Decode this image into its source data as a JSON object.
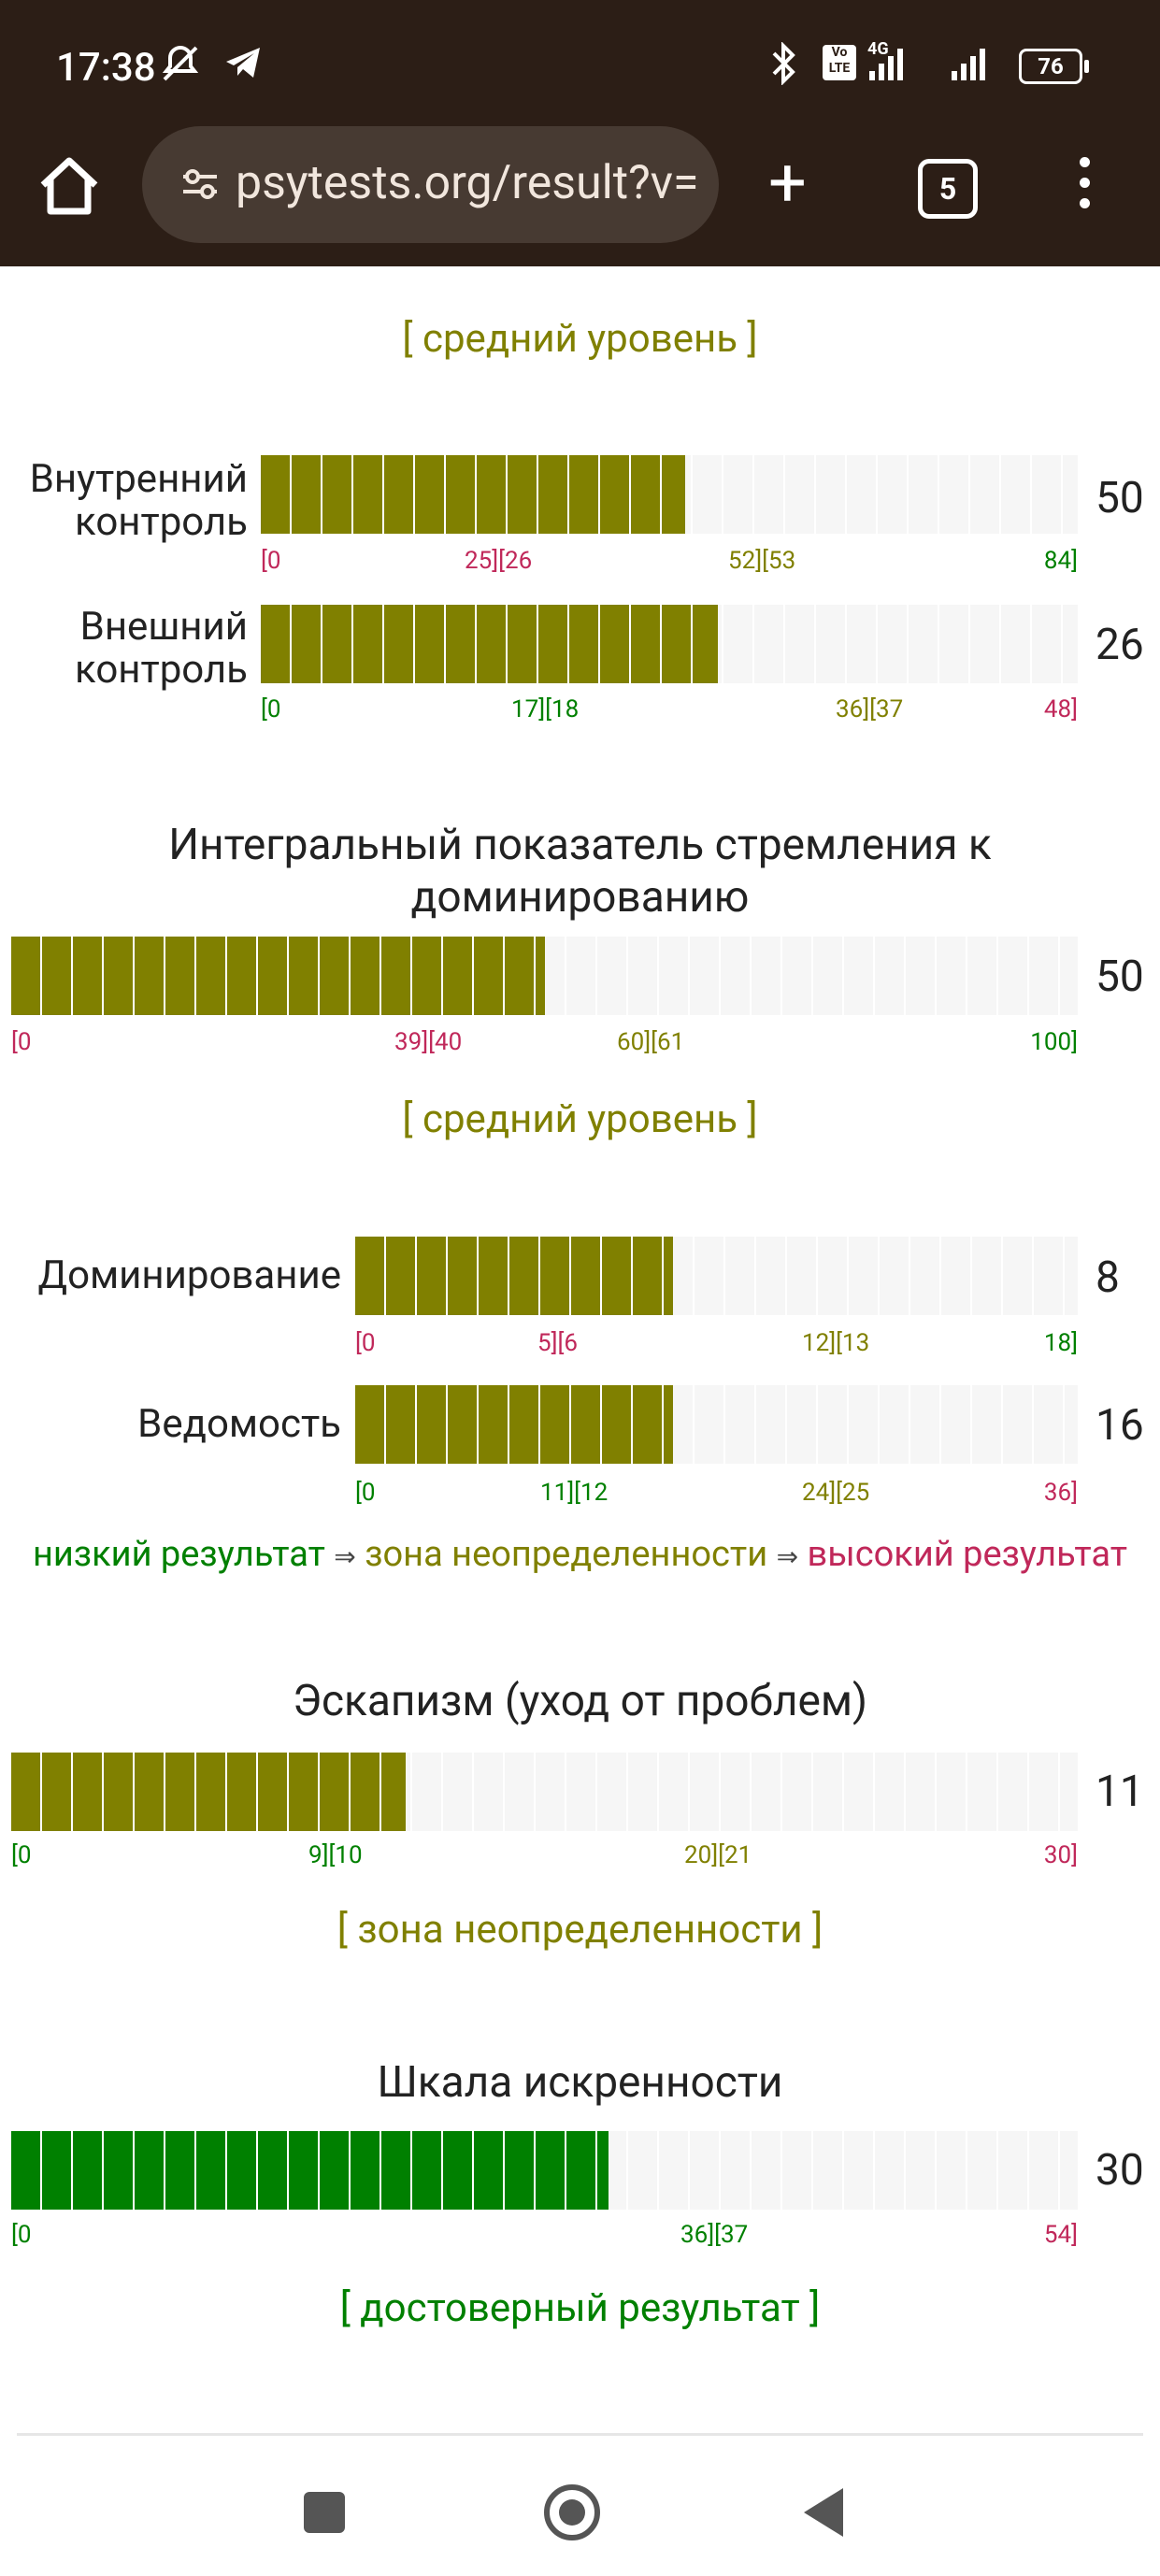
{
  "status_bar": {
    "time": "17:38",
    "network": "4G",
    "battery": "76"
  },
  "browser": {
    "url": "psytests.org/result?v=",
    "tab_count": "5"
  },
  "blocks": {
    "top_level": "[ средний уровень ]",
    "internal": {
      "label_line1": "Внутренний",
      "label_line2": "контроль",
      "value": "50",
      "fill_fraction": 0.52,
      "ticks": [
        "[0",
        "25][26",
        "52][53",
        "84]"
      ]
    },
    "external": {
      "label_line1": "Внешний",
      "label_line2": "контроль",
      "value": "26",
      "fill_fraction": 0.56,
      "ticks": [
        "[0",
        "17][18",
        "36][37",
        "48]"
      ]
    },
    "integral": {
      "title": "Интегральный показатель стремления к доминированию",
      "value": "50",
      "fill_fraction": 0.5,
      "ticks": [
        "[0",
        "39][40",
        "60][61",
        "100]"
      ],
      "level": "[ средний уровень ]"
    },
    "dominance": {
      "label": "Доминирование",
      "value": "8",
      "fill_fraction": 0.44,
      "ticks": [
        "[0",
        "5][6",
        "12][13",
        "18]"
      ]
    },
    "submission": {
      "label": "Ведомость",
      "value": "16",
      "fill_fraction": 0.44,
      "ticks": [
        "[0",
        "11][12",
        "24][25",
        "36]"
      ]
    },
    "legend": {
      "low": "низкий результат",
      "arrow": "⇒",
      "mid": "зона неопределенности",
      "high": "высокий результат"
    },
    "escapism": {
      "title": "Эскапизм (уход от проблем)",
      "value": "11",
      "fill_fraction": 0.37,
      "ticks": [
        "[0",
        "9][10",
        "20][21",
        "30]"
      ],
      "level": "[ зона неопределенности ]"
    },
    "sincerity": {
      "title": "Шкала искренности",
      "value": "30",
      "fill_fraction": 0.56,
      "ticks": [
        "[0",
        "36][37",
        "54]"
      ],
      "level": "[ достоверный результат ]"
    }
  },
  "colors": {
    "olive": "#808000",
    "green": "#008000",
    "red": "#c0285a",
    "topbar": "#2c1e16"
  }
}
